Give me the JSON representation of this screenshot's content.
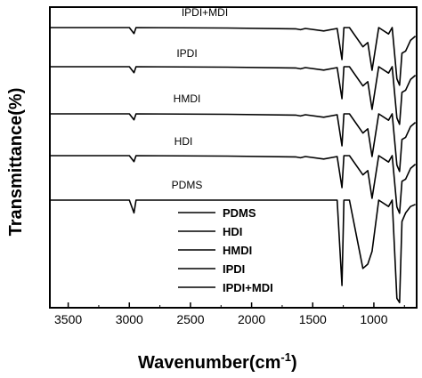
{
  "chart_data": {
    "type": "line",
    "xlabel": "Wavenumber(cm",
    "xlabel_sup": "-1",
    "xlabel_close": ")",
    "ylabel": "Transmittance(%)",
    "xlim": [
      3650,
      650
    ],
    "x_reversed": true,
    "y_ticks_shown": false,
    "grid": false,
    "x_ticks": [
      3500,
      3000,
      2500,
      2000,
      1500,
      1000
    ],
    "legend_position": "bottom-center",
    "series": [
      {
        "name": "IPDI+MDI",
        "offset": 4,
        "points": [
          [
            3650,
            0.0
          ],
          [
            3000,
            0.0
          ],
          [
            2962,
            -0.14
          ],
          [
            2945,
            0.0
          ],
          [
            2200,
            -0.01
          ],
          [
            1640,
            -0.03
          ],
          [
            1600,
            -0.05
          ],
          [
            1560,
            -0.02
          ],
          [
            1410,
            -0.08
          ],
          [
            1300,
            -0.02
          ],
          [
            1261,
            -0.75
          ],
          [
            1245,
            0.0
          ],
          [
            1200,
            0.0
          ],
          [
            1090,
            -0.45
          ],
          [
            1050,
            -0.35
          ],
          [
            1015,
            -1.0
          ],
          [
            960,
            0.0
          ],
          [
            880,
            -0.15
          ],
          [
            850,
            0.0
          ],
          [
            812,
            -1.2
          ],
          [
            790,
            -1.35
          ],
          [
            770,
            -0.6
          ],
          [
            740,
            -0.55
          ],
          [
            700,
            -0.3
          ],
          [
            660,
            -0.2
          ]
        ]
      },
      {
        "name": "IPDI",
        "offset": 3,
        "points": [
          [
            3650,
            0.0
          ],
          [
            3000,
            0.0
          ],
          [
            2962,
            -0.14
          ],
          [
            2945,
            0.0
          ],
          [
            2200,
            -0.01
          ],
          [
            1640,
            -0.03
          ],
          [
            1600,
            -0.05
          ],
          [
            1560,
            -0.02
          ],
          [
            1410,
            -0.08
          ],
          [
            1300,
            -0.02
          ],
          [
            1261,
            -0.75
          ],
          [
            1245,
            0.0
          ],
          [
            1200,
            0.0
          ],
          [
            1090,
            -0.45
          ],
          [
            1050,
            -0.35
          ],
          [
            1015,
            -1.0
          ],
          [
            960,
            0.0
          ],
          [
            880,
            -0.15
          ],
          [
            850,
            0.0
          ],
          [
            812,
            -1.2
          ],
          [
            790,
            -1.35
          ],
          [
            770,
            -0.6
          ],
          [
            740,
            -0.55
          ],
          [
            700,
            -0.3
          ],
          [
            660,
            -0.2
          ]
        ]
      },
      {
        "name": "HMDI",
        "offset": 2,
        "points": [
          [
            3650,
            0.0
          ],
          [
            3000,
            0.0
          ],
          [
            2962,
            -0.14
          ],
          [
            2945,
            0.0
          ],
          [
            2200,
            -0.01
          ],
          [
            1640,
            -0.03
          ],
          [
            1600,
            -0.05
          ],
          [
            1560,
            -0.02
          ],
          [
            1410,
            -0.08
          ],
          [
            1300,
            -0.02
          ],
          [
            1261,
            -0.75
          ],
          [
            1245,
            0.0
          ],
          [
            1200,
            0.0
          ],
          [
            1090,
            -0.45
          ],
          [
            1050,
            -0.35
          ],
          [
            1015,
            -1.0
          ],
          [
            960,
            0.0
          ],
          [
            880,
            -0.15
          ],
          [
            850,
            0.0
          ],
          [
            812,
            -1.2
          ],
          [
            790,
            -1.35
          ],
          [
            770,
            -0.6
          ],
          [
            740,
            -0.55
          ],
          [
            700,
            -0.3
          ],
          [
            660,
            -0.2
          ]
        ]
      },
      {
        "name": "HDI",
        "offset": 1,
        "points": [
          [
            3650,
            0.0
          ],
          [
            3000,
            0.0
          ],
          [
            2962,
            -0.14
          ],
          [
            2945,
            0.0
          ],
          [
            2200,
            -0.01
          ],
          [
            1640,
            -0.03
          ],
          [
            1600,
            -0.05
          ],
          [
            1560,
            -0.02
          ],
          [
            1410,
            -0.08
          ],
          [
            1300,
            -0.02
          ],
          [
            1261,
            -0.75
          ],
          [
            1245,
            0.0
          ],
          [
            1200,
            0.0
          ],
          [
            1090,
            -0.45
          ],
          [
            1050,
            -0.35
          ],
          [
            1015,
            -1.0
          ],
          [
            960,
            0.0
          ],
          [
            880,
            -0.15
          ],
          [
            850,
            0.0
          ],
          [
            812,
            -1.2
          ],
          [
            790,
            -1.35
          ],
          [
            770,
            -0.6
          ],
          [
            740,
            -0.55
          ],
          [
            700,
            -0.3
          ],
          [
            660,
            -0.2
          ]
        ]
      },
      {
        "name": "PDMS",
        "offset": 0,
        "points": [
          [
            3650,
            0.0
          ],
          [
            3000,
            0.0
          ],
          [
            2962,
            -0.3
          ],
          [
            2945,
            0.0
          ],
          [
            1300,
            0.0
          ],
          [
            1261,
            -2.0
          ],
          [
            1245,
            0.0
          ],
          [
            1200,
            0.0
          ],
          [
            1090,
            -1.6
          ],
          [
            1050,
            -1.5
          ],
          [
            1015,
            -1.2
          ],
          [
            960,
            0.0
          ],
          [
            880,
            -0.15
          ],
          [
            850,
            0.0
          ],
          [
            812,
            -2.3
          ],
          [
            790,
            -2.4
          ],
          [
            770,
            -0.5
          ],
          [
            740,
            -0.3
          ],
          [
            700,
            -0.15
          ],
          [
            660,
            -0.1
          ]
        ]
      }
    ],
    "spectrum_labels": [
      "IPDI+MDI",
      "IPDI",
      "HMDI",
      "HDI",
      "PDMS"
    ],
    "legend": [
      "PDMS",
      "HDI",
      "HMDI",
      "IPDI",
      "IPDI+MDI"
    ]
  }
}
